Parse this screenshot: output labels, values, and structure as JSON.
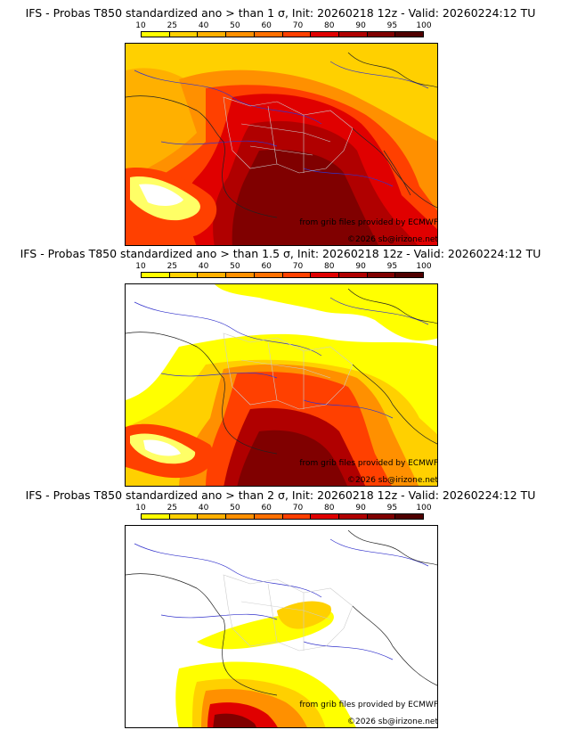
{
  "panels": [
    {
      "title": "IFS - Probas T850  standardized ano > than 1 σ, Init: 20260218 12z - Valid: 20260224:12 TU",
      "credit_source": "from grib files provided by ECMWF",
      "credit_copyright": "©2026 sb@irizone.net"
    },
    {
      "title": "IFS - Probas T850  standardized ano > than 1.5 σ, Init: 20260218 12z - Valid: 20260224:12 TU",
      "credit_source": "from grib files provided by ECMWF",
      "credit_copyright": "©2026 sb@irizone.net"
    },
    {
      "title": "IFS - Probas T850  standardized ano > than 2 σ, Init: 20260218 12z - Valid: 20260224:12 TU",
      "credit_source": "from grib files provided by ECMWF",
      "credit_copyright": "©2026 sb@irizone.net"
    }
  ],
  "legend": {
    "ticks": [
      "10",
      "25",
      "40",
      "50",
      "60",
      "70",
      "80",
      "90",
      "95",
      "100"
    ],
    "colors": [
      "#ffff00",
      "#ffd000",
      "#ffb000",
      "#ff9000",
      "#ff7000",
      "#ff4000",
      "#e00000",
      "#b00000",
      "#800000",
      "#500000"
    ]
  }
}
